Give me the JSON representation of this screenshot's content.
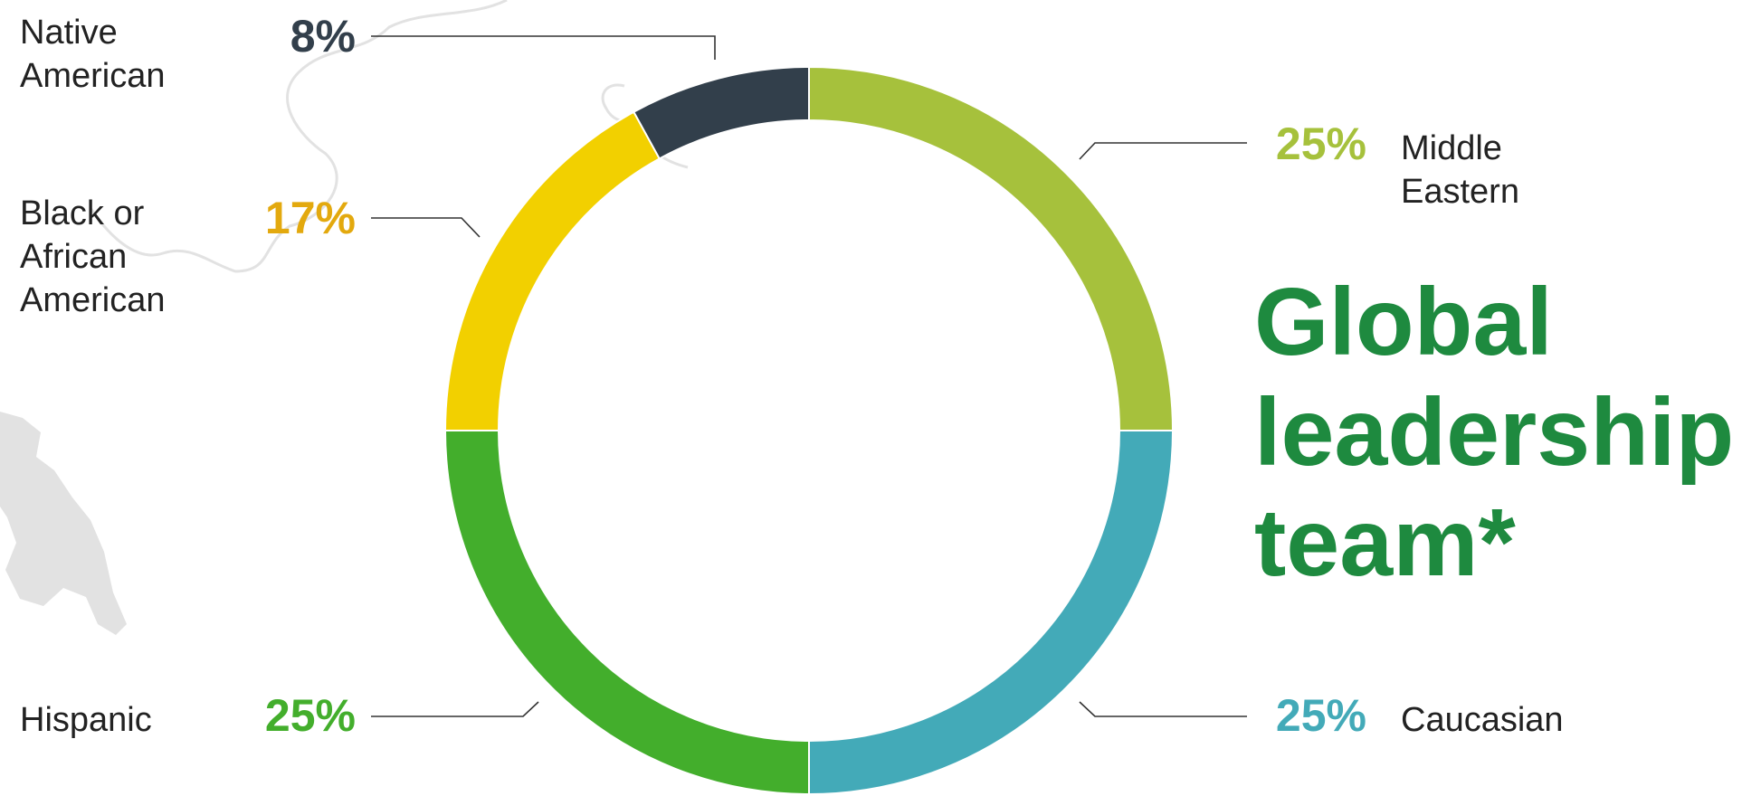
{
  "chart_data": {
    "type": "pie",
    "variant": "donut",
    "title": "Global leadership team*",
    "slices": [
      {
        "label": "Middle Eastern",
        "value": 25,
        "value_label": "25%",
        "color": "#A6C13C"
      },
      {
        "label": "Caucasian",
        "value": 25,
        "value_label": "25%",
        "color": "#43AAB8"
      },
      {
        "label": "Hispanic",
        "value": 25,
        "value_label": "25%",
        "color": "#43AE2C"
      },
      {
        "label": "Black or African American",
        "value": 17,
        "value_label": "17%",
        "color": "#F2D000"
      },
      {
        "label": "Native American",
        "value": 8,
        "value_label": "8%",
        "color": "#323F4B"
      }
    ],
    "label_colors": [
      "#A6C13C",
      "#43AAB8",
      "#43AE2C",
      "#E3A90E",
      "#323F4B"
    ],
    "start": "12 o'clock",
    "direction": "clockwise"
  },
  "title_lines": [
    "Global",
    "leadership",
    "team*"
  ],
  "title_color": "#1E8A3F",
  "label_lines": [
    [
      "Middle",
      "Eastern"
    ],
    [
      "Caucasian"
    ],
    [
      "Hispanic"
    ],
    [
      "Black or",
      "African",
      "American"
    ],
    [
      "Native",
      "American"
    ]
  ],
  "map_color": "#E2E2E2"
}
